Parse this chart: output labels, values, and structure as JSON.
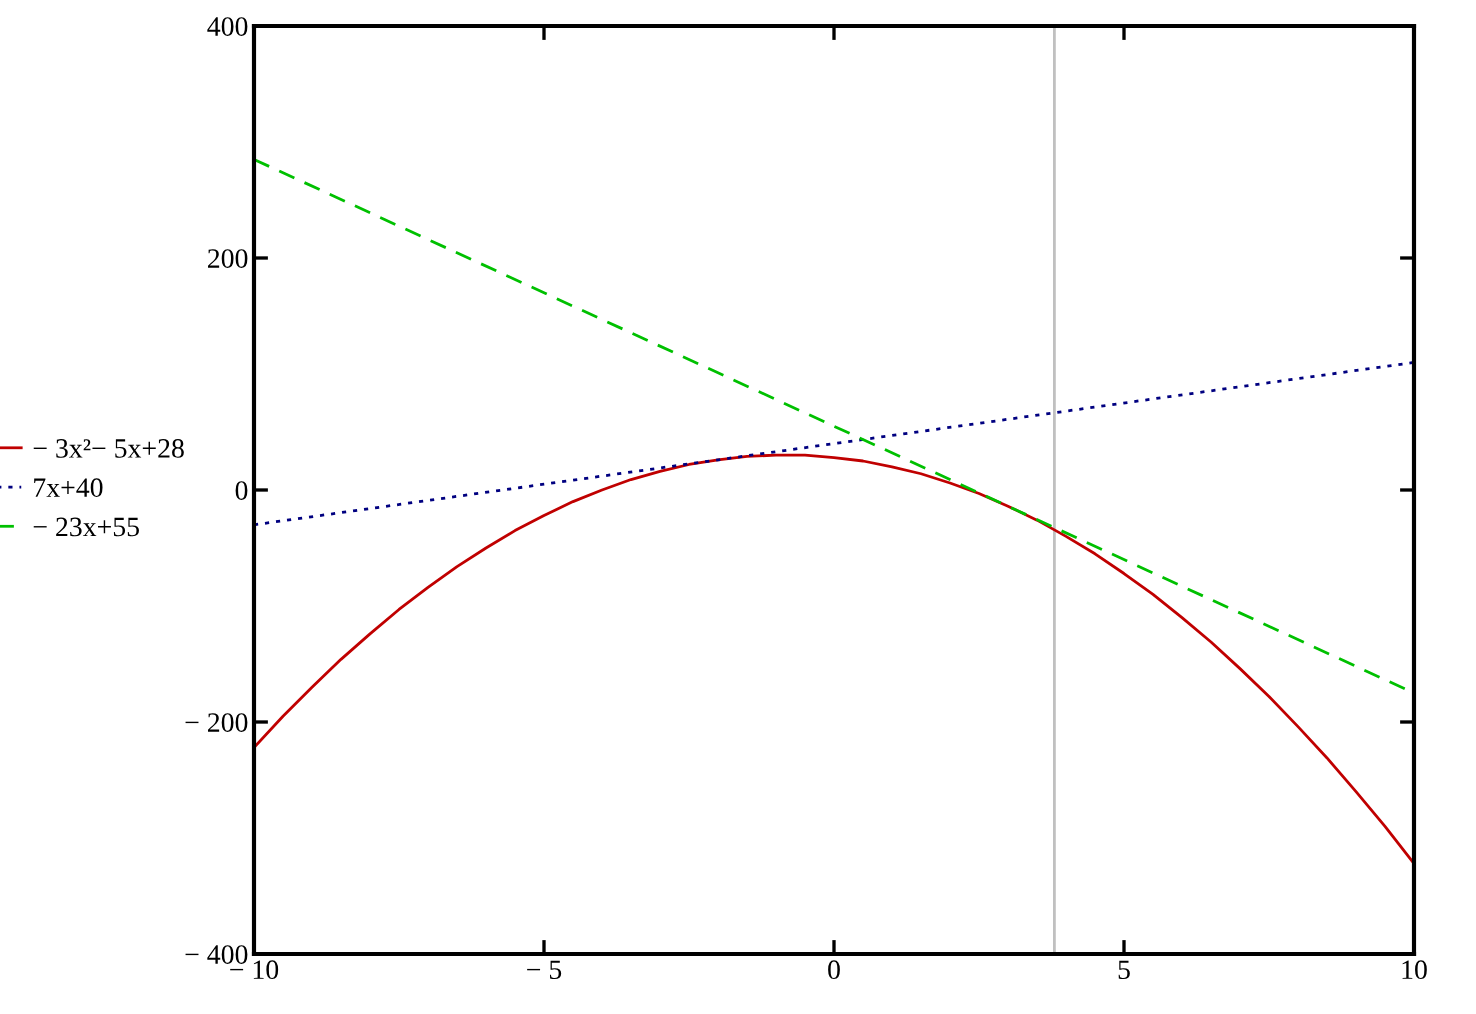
{
  "chart_data": {
    "type": "line",
    "series": [
      {
        "name": "− 3x²− 5x+28",
        "color": "#c00000",
        "line_style": "solid",
        "x": [
          -10,
          -9.5,
          -9,
          -8.5,
          -8,
          -7.5,
          -7,
          -6.5,
          -6,
          -5.5,
          -5,
          -4.5,
          -4,
          -3.5,
          -3,
          -2.5,
          -2,
          -1.5,
          -1,
          -0.5,
          0,
          0.5,
          1,
          1.5,
          2,
          2.5,
          3,
          3.5,
          4,
          4.5,
          5,
          5.5,
          6,
          6.5,
          7,
          7.5,
          8,
          8.5,
          9,
          9.5,
          10
        ],
        "values": [
          -222,
          -195,
          -170,
          -146,
          -124,
          -103,
          -84,
          -66,
          -50,
          -35,
          -22,
          -10,
          0,
          9,
          16,
          22,
          26,
          29,
          30,
          30,
          28,
          25,
          20,
          14,
          6,
          -3,
          -14,
          -26,
          -40,
          -55,
          -72,
          -90,
          -110,
          -131,
          -154,
          -178,
          -204,
          -231,
          -260,
          -290,
          -322
        ]
      },
      {
        "name": "7x+40",
        "color": "#000080",
        "line_style": "dotted",
        "x": [
          -10,
          10
        ],
        "values": [
          -30,
          110
        ]
      },
      {
        "name": "− 23x+55",
        "color": "#00c000",
        "line_style": "dashed",
        "x": [
          -10,
          10
        ],
        "values": [
          285,
          -175
        ]
      }
    ],
    "xlim": [
      -10,
      10
    ],
    "ylim": [
      -400,
      400
    ],
    "xticks": [
      {
        "value": -10,
        "label": "− 10"
      },
      {
        "value": -5,
        "label": "− 5"
      },
      0,
      5,
      10
    ],
    "yticks": [
      {
        "value": -400,
        "label": "− 400"
      },
      {
        "value": -200,
        "label": "− 200"
      },
      0,
      200,
      400
    ],
    "ref_lines": [
      {
        "axis": "x",
        "value": 3.8,
        "color": "#c0c0c0"
      }
    ],
    "legend": "left"
  }
}
